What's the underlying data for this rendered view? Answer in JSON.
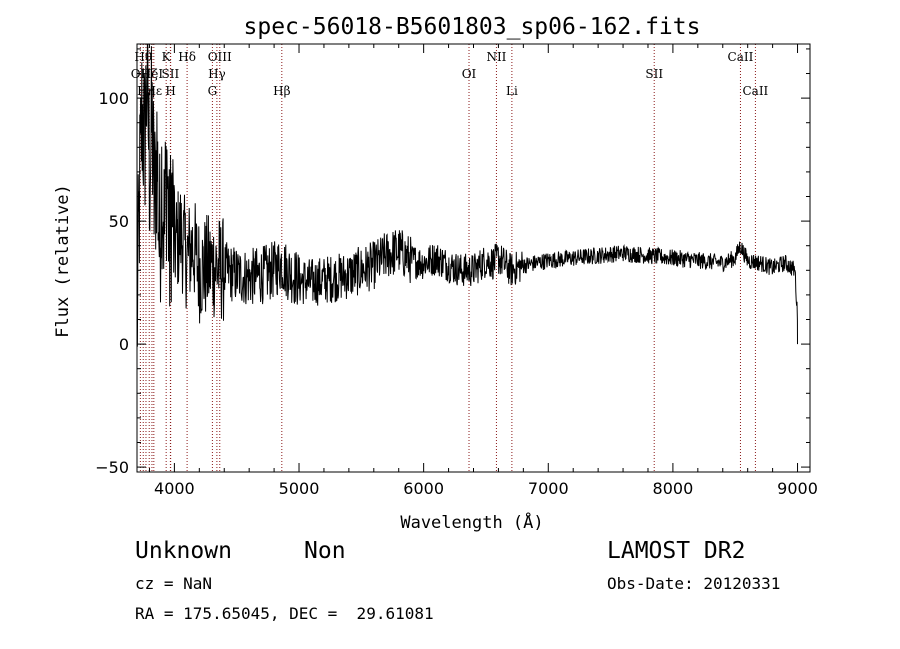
{
  "chart_data": {
    "type": "line",
    "title": "spec-56018-B5601803_sp06-162.fits",
    "xlabel": "Wavelength (Å)",
    "ylabel": "Flux (relative)",
    "xlim": [
      3700,
      9100
    ],
    "ylim": [
      -52,
      122
    ],
    "x_ticks": [
      4000,
      5000,
      6000,
      7000,
      8000,
      9000
    ],
    "y_ticks": [
      -50,
      0,
      50,
      100
    ],
    "grid": false,
    "line_color": "#000000",
    "marker_color": "#8b1a1a",
    "series": [
      {
        "anchors": [
          [
            3700,
            5
          ],
          [
            3720,
            60
          ],
          [
            3740,
            95
          ],
          [
            3760,
            80
          ],
          [
            3780,
            110
          ],
          [
            3800,
            70
          ],
          [
            3820,
            90
          ],
          [
            3840,
            55
          ],
          [
            3860,
            80
          ],
          [
            3880,
            40
          ],
          [
            3900,
            70
          ],
          [
            3920,
            45
          ],
          [
            3940,
            75
          ],
          [
            3960,
            35
          ],
          [
            3980,
            60
          ],
          [
            4000,
            40
          ],
          [
            4050,
            45
          ],
          [
            4100,
            35
          ],
          [
            4150,
            40
          ],
          [
            4200,
            30
          ],
          [
            4300,
            32
          ],
          [
            4400,
            30
          ],
          [
            4500,
            28
          ],
          [
            4600,
            27
          ],
          [
            4700,
            28
          ],
          [
            4800,
            30
          ],
          [
            4860,
            33
          ],
          [
            4900,
            30
          ],
          [
            5000,
            26
          ],
          [
            5100,
            25
          ],
          [
            5200,
            26
          ],
          [
            5300,
            27
          ],
          [
            5400,
            28
          ],
          [
            5500,
            30
          ],
          [
            5600,
            32
          ],
          [
            5700,
            36
          ],
          [
            5800,
            38
          ],
          [
            5900,
            34
          ],
          [
            6000,
            33
          ],
          [
            6100,
            35
          ],
          [
            6200,
            32
          ],
          [
            6300,
            30
          ],
          [
            6400,
            30
          ],
          [
            6500,
            34
          ],
          [
            6560,
            33
          ],
          [
            6600,
            35
          ],
          [
            6700,
            30
          ],
          [
            6800,
            32
          ],
          [
            6900,
            33
          ],
          [
            7000,
            34
          ],
          [
            7200,
            35
          ],
          [
            7400,
            36
          ],
          [
            7600,
            37
          ],
          [
            7800,
            36
          ],
          [
            8000,
            35
          ],
          [
            8200,
            34
          ],
          [
            8400,
            33
          ],
          [
            8500,
            35
          ],
          [
            8540,
            40
          ],
          [
            8600,
            34
          ],
          [
            8700,
            33
          ],
          [
            8800,
            31
          ],
          [
            8900,
            33
          ],
          [
            8980,
            30
          ],
          [
            9000,
            10
          ]
        ]
      }
    ],
    "line_markers": [
      {
        "label": "OII",
        "x": 3727,
        "row": 2
      },
      {
        "label": "Hθ",
        "x": 3750,
        "row": 1
      },
      {
        "label": "Hη",
        "x": 3772,
        "row": 3
      },
      {
        "label": "Hζ",
        "x": 3798,
        "row": 2
      },
      {
        "label": "HeI",
        "x": 3820,
        "row": 2
      },
      {
        "label": "Hε",
        "x": 3835,
        "row": 3
      },
      {
        "label": "K",
        "x": 3934,
        "row": 1
      },
      {
        "label": "SII",
        "x": 3968,
        "row": 2
      },
      {
        "label": "H",
        "x": 3970,
        "row": 3
      },
      {
        "label": "Hδ",
        "x": 4102,
        "row": 1
      },
      {
        "label": "G",
        "x": 4305,
        "row": 3
      },
      {
        "label": "Hγ",
        "x": 4341,
        "row": 2
      },
      {
        "label": "OIII",
        "x": 4364,
        "row": 1
      },
      {
        "label": "Hβ",
        "x": 4862,
        "row": 3
      },
      {
        "label": "OI",
        "x": 6364,
        "row": 2
      },
      {
        "label": "NII",
        "x": 6584,
        "row": 1
      },
      {
        "label": "Li",
        "x": 6708,
        "row": 3
      },
      {
        "label": "SII",
        "x": 7850,
        "row": 2
      },
      {
        "label": "CaII",
        "x": 8542,
        "row": 1
      },
      {
        "label": "CaII",
        "x": 8662,
        "row": 3
      }
    ]
  },
  "footer": {
    "object_class": "Unknown",
    "subclass": "Non",
    "cz": "cz = NaN",
    "coords": "RA = 175.65045, DEC =  29.61081",
    "survey": "LAMOST DR2",
    "obs_date": "Obs-Date: 20120331"
  }
}
